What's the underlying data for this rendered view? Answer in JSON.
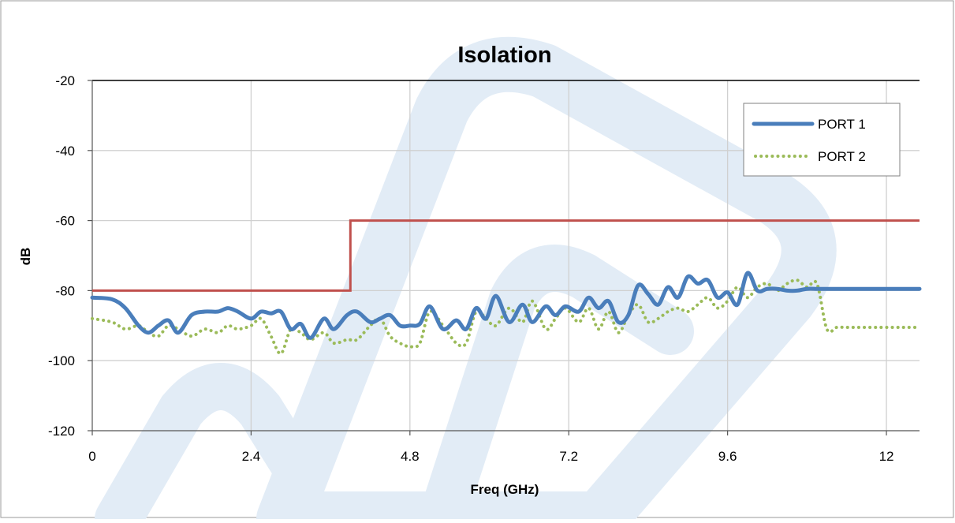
{
  "chart_data": {
    "type": "line",
    "title": "Isolation",
    "xlabel": "Freq (GHz)",
    "ylabel": "dB",
    "xlim": [
      0,
      12.5
    ],
    "ylim": [
      -120,
      -20
    ],
    "xticks": [
      0,
      2.4,
      4.8,
      7.2,
      9.6,
      12
    ],
    "xtick_labels": [
      "0",
      "2.4",
      "4.8",
      "7.2",
      "9.6",
      "12"
    ],
    "yticks": [
      -20,
      -40,
      -60,
      -80,
      -100,
      -120
    ],
    "ytick_labels": [
      "-20",
      "-40",
      "-60",
      "-80",
      "-100",
      "-120"
    ],
    "grid": true,
    "legend_position": "top-right",
    "colors": {
      "port1": "#4a7ebb",
      "port2": "#9bbb59",
      "limit": "#c0504d",
      "grid": "#d0d0d0",
      "frame": "#888888",
      "watermark": "#dbe7f3"
    },
    "series": [
      {
        "name": "PORT 1",
        "style": "solid",
        "x": [
          0,
          0.3,
          0.5,
          0.7,
          0.85,
          1.0,
          1.15,
          1.3,
          1.5,
          1.7,
          1.9,
          2.05,
          2.2,
          2.4,
          2.55,
          2.7,
          2.85,
          3.0,
          3.15,
          3.3,
          3.5,
          3.65,
          3.85,
          4.0,
          4.2,
          4.35,
          4.5,
          4.65,
          4.8,
          4.95,
          5.1,
          5.3,
          5.5,
          5.65,
          5.8,
          5.95,
          6.1,
          6.3,
          6.5,
          6.65,
          6.85,
          7.0,
          7.15,
          7.35,
          7.5,
          7.65,
          7.8,
          7.95,
          8.1,
          8.25,
          8.4,
          8.55,
          8.7,
          8.85,
          9.0,
          9.15,
          9.3,
          9.45,
          9.6,
          9.75,
          9.9,
          10.05,
          10.2,
          10.35,
          10.5,
          10.65,
          10.8,
          10.95,
          11.1,
          11.25,
          11.4,
          11.55,
          11.7,
          11.85,
          12.0,
          12.15,
          12.3,
          12.5
        ],
        "y": [
          -82,
          -82.5,
          -85,
          -90,
          -92,
          -90,
          -88.5,
          -92,
          -87,
          -86,
          -86,
          -85,
          -86,
          -88,
          -86,
          -86.5,
          -86,
          -91,
          -89.5,
          -93.5,
          -88,
          -91,
          -87,
          -86,
          -89,
          -88,
          -87,
          -90,
          -90,
          -89.5,
          -84.5,
          -91,
          -88.5,
          -91,
          -85,
          -88,
          -81.5,
          -89,
          -84,
          -89,
          -84.5,
          -87,
          -84.5,
          -86,
          -82,
          -85,
          -83,
          -89,
          -87,
          -78.5,
          -81,
          -84,
          -79,
          -82,
          -76,
          -78,
          -77,
          -82,
          -80.5,
          -84,
          -75,
          -80,
          -79.5,
          -79.5,
          -80,
          -80,
          -79.5,
          -79.5,
          -79.5,
          -79.5,
          -79.5,
          -79.5,
          -79.5,
          -79.5,
          -79.5,
          -79.5,
          -79.5,
          -79.5
        ]
      },
      {
        "name": "PORT 2",
        "style": "dotted",
        "x": [
          0,
          0.3,
          0.5,
          0.7,
          0.85,
          1.0,
          1.15,
          1.3,
          1.5,
          1.7,
          1.9,
          2.05,
          2.2,
          2.4,
          2.55,
          2.7,
          2.85,
          3.0,
          3.15,
          3.3,
          3.5,
          3.65,
          3.85,
          4.0,
          4.2,
          4.35,
          4.5,
          4.65,
          4.8,
          4.95,
          5.1,
          5.3,
          5.5,
          5.65,
          5.8,
          5.95,
          6.1,
          6.3,
          6.5,
          6.65,
          6.85,
          7.0,
          7.15,
          7.35,
          7.5,
          7.65,
          7.8,
          7.95,
          8.1,
          8.25,
          8.4,
          8.55,
          8.7,
          8.85,
          9.0,
          9.15,
          9.3,
          9.45,
          9.6,
          9.75,
          9.9,
          10.05,
          10.2,
          10.35,
          10.5,
          10.65,
          10.8,
          10.95,
          11.1,
          11.25,
          11.4,
          11.55,
          11.7,
          11.85,
          12.0,
          12.15,
          12.3,
          12.5
        ],
        "y": [
          -88,
          -89,
          -91,
          -90,
          -92,
          -93,
          -90,
          -91,
          -93,
          -91,
          -92,
          -90,
          -91,
          -90,
          -88,
          -93,
          -98,
          -91,
          -92,
          -94,
          -92,
          -95,
          -94,
          -94,
          -90,
          -88,
          -93,
          -95,
          -96,
          -95,
          -86,
          -90,
          -95,
          -95,
          -86,
          -88,
          -90,
          -85,
          -89,
          -83,
          -91,
          -88,
          -85,
          -89,
          -85,
          -91,
          -86,
          -92,
          -87,
          -84,
          -89,
          -88,
          -86,
          -85,
          -86,
          -84,
          -82,
          -85,
          -83,
          -79,
          -82,
          -79,
          -78,
          -80,
          -78,
          -77,
          -79,
          -78,
          -91,
          -90.5,
          -90.5,
          -90.5,
          -90.5,
          -90.5,
          -90.5,
          -90.5,
          -90.5,
          -90.5
        ]
      },
      {
        "name": "",
        "style": "step",
        "x": [
          0,
          3.9,
          3.9,
          12.5
        ],
        "y": [
          -80,
          -80,
          -60,
          -60
        ]
      }
    ]
  }
}
